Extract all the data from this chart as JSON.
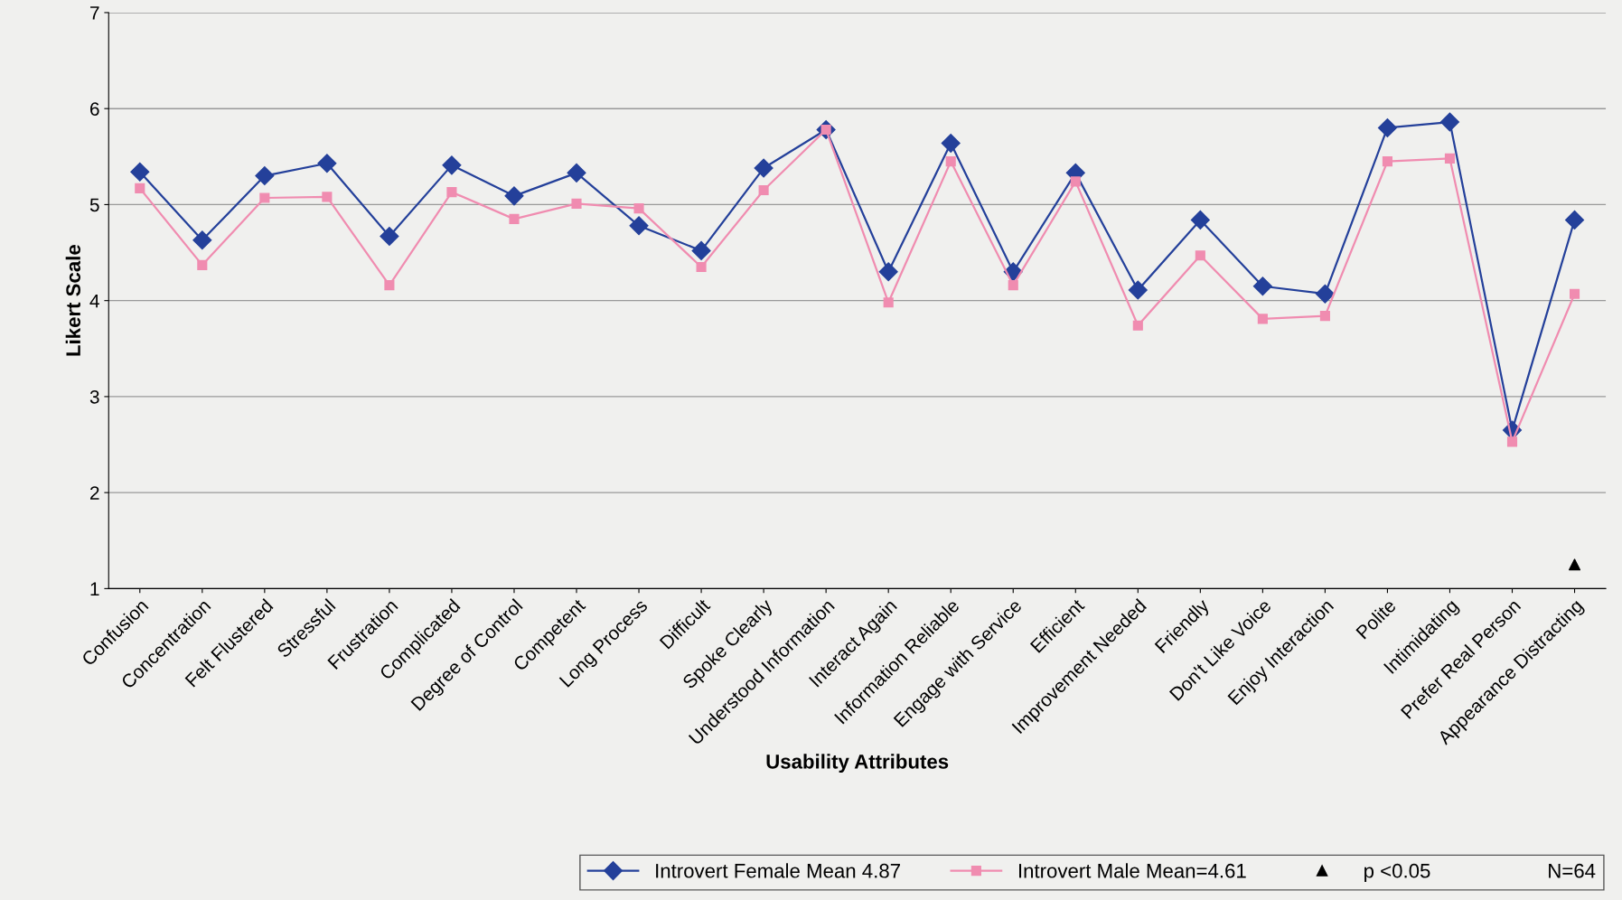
{
  "chart_data": {
    "type": "line",
    "xlabel": "Usability Attributes",
    "ylabel": "Likert Scale",
    "categories": [
      "Confusion",
      "Concentration",
      "Felt Flustered",
      "Stressful",
      "Frustration",
      "Complicated",
      "Degree of Control",
      "Competent",
      "Long Process",
      "Difficult",
      "Spoke Clearly",
      "Understood Information",
      "Interact Again",
      "Information Reliable",
      "Engage with Service",
      "Efficient",
      "Improvement Needed",
      "Friendly",
      "Don't Like Voice",
      "Enjoy Interaction",
      "Polite",
      "Intimidating",
      "Prefer Real Person",
      "Appearance Distracting"
    ],
    "series": [
      {
        "name": "Introvert Female Mean 4.87",
        "color": "#24409a",
        "marker": "diamond",
        "values": [
          5.34,
          4.63,
          5.3,
          5.43,
          4.67,
          5.41,
          5.09,
          5.33,
          4.78,
          4.52,
          5.38,
          5.78,
          4.3,
          5.64,
          4.3,
          5.33,
          4.11,
          4.84,
          4.15,
          4.07,
          5.8,
          5.86,
          2.65,
          4.84
        ]
      },
      {
        "name": "Introvert Male Mean=4.61",
        "color": "#f08cb0",
        "marker": "square",
        "values": [
          5.17,
          4.37,
          5.07,
          5.08,
          4.16,
          5.13,
          4.85,
          5.01,
          4.96,
          4.35,
          5.15,
          5.78,
          3.98,
          5.45,
          4.16,
          5.24,
          3.74,
          4.47,
          3.81,
          3.84,
          5.45,
          5.48,
          2.53,
          4.07
        ]
      },
      {
        "name": "p <0.05",
        "type": "scatter",
        "color": "#000000",
        "marker": "triangle",
        "x": [
          "Appearance Distracting"
        ],
        "values": [
          1.25
        ]
      }
    ],
    "ylim": [
      1,
      7
    ],
    "yticks": [
      1,
      2,
      3,
      4,
      5,
      6,
      7
    ],
    "grid": "y",
    "legend": "bottom",
    "line_style": "solid",
    "annotations": [
      "N=64"
    ]
  }
}
